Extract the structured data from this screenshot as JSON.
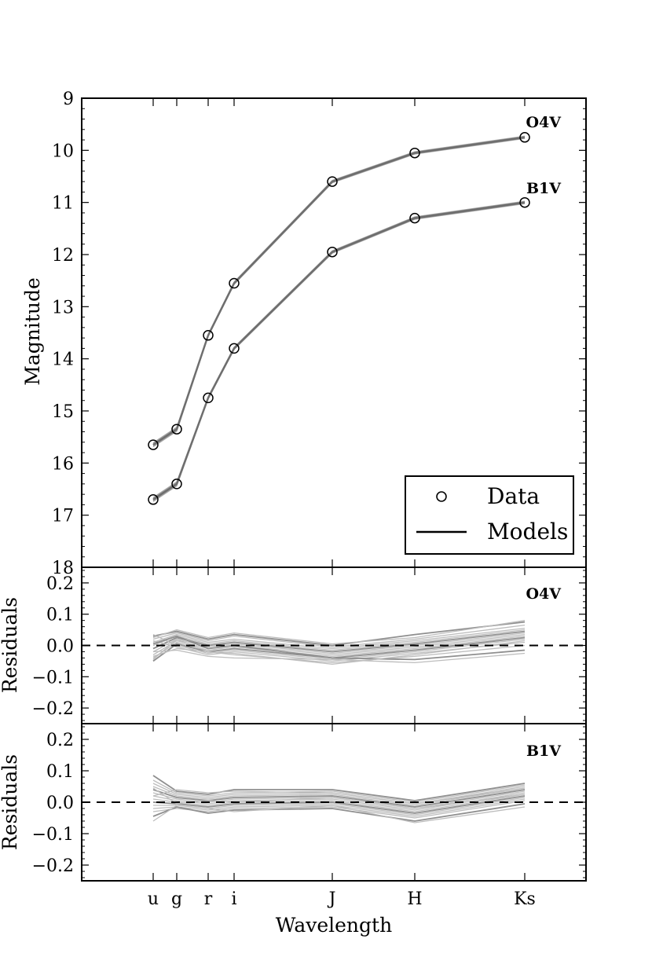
{
  "chart_data": {
    "type": "line",
    "xlabel": "Wavelength",
    "bands": [
      "u",
      "g",
      "r",
      "i",
      "J",
      "H",
      "Ks"
    ],
    "band_wavelength_um": [
      0.354,
      0.475,
      0.622,
      0.763,
      1.25,
      1.65,
      2.15
    ],
    "panels": [
      {
        "id": "magnitude",
        "ylabel": "Magnitude",
        "ylim": [
          18,
          9
        ],
        "yticks": [
          "9",
          "10",
          "11",
          "12",
          "13",
          "14",
          "15",
          "16",
          "17",
          "18"
        ],
        "series": [
          {
            "name": "O4V",
            "label": "O4V",
            "values": [
              15.65,
              15.35,
              13.55,
              12.55,
              10.6,
              10.05,
              9.75
            ]
          },
          {
            "name": "B1V",
            "label": "B1V",
            "values": [
              16.7,
              16.4,
              14.75,
              13.8,
              11.95,
              11.3,
              11.0
            ]
          }
        ],
        "legend": {
          "position": "lower-right",
          "entries": [
            "Data",
            "Models"
          ]
        }
      },
      {
        "id": "residuals-O4V",
        "ylabel": "Residuals",
        "label": "O4V",
        "ylim": [
          -0.25,
          0.25
        ],
        "yticks": [
          "0.2",
          "0.1",
          "0.0",
          "−0.1",
          "−0.2"
        ],
        "ytick_values": [
          0.2,
          0.1,
          0.0,
          -0.1,
          -0.2
        ],
        "reference_line": 0.0,
        "residual_series": [
          [
            0.03,
            0.045,
            0.02,
            0.035,
            0.0,
            0.035,
            0.075
          ],
          [
            0.02,
            0.04,
            0.015,
            0.03,
            -0.005,
            0.02,
            0.065
          ],
          [
            0.01,
            0.035,
            0.01,
            0.02,
            -0.01,
            0.015,
            0.055
          ],
          [
            0.0,
            0.03,
            0.005,
            0.015,
            -0.015,
            0.01,
            0.05
          ],
          [
            -0.01,
            0.025,
            0.0,
            0.01,
            -0.02,
            0.005,
            0.045
          ],
          [
            -0.02,
            0.02,
            -0.005,
            0.005,
            -0.025,
            0.0,
            0.04
          ],
          [
            -0.03,
            0.015,
            -0.01,
            0.0,
            -0.03,
            -0.005,
            0.035
          ],
          [
            -0.04,
            0.01,
            -0.015,
            -0.005,
            -0.035,
            -0.01,
            0.03
          ],
          [
            -0.05,
            0.005,
            -0.02,
            -0.01,
            -0.04,
            -0.015,
            0.025
          ],
          [
            0.035,
            0.0,
            -0.025,
            -0.015,
            -0.045,
            -0.02,
            0.02
          ],
          [
            0.015,
            -0.005,
            -0.03,
            -0.02,
            -0.05,
            -0.025,
            0.01
          ],
          [
            -0.035,
            -0.01,
            -0.02,
            -0.03,
            -0.055,
            -0.035,
            0.0
          ],
          [
            0.005,
            0.03,
            -0.01,
            0.0,
            -0.04,
            -0.045,
            -0.015
          ],
          [
            -0.02,
            -0.015,
            -0.035,
            -0.04,
            -0.045,
            -0.055,
            -0.025
          ],
          [
            0.025,
            0.05,
            0.025,
            0.04,
            0.005,
            0.025,
            0.08
          ],
          [
            -0.045,
            0.02,
            -0.02,
            -0.025,
            -0.06,
            -0.03,
            0.015
          ]
        ]
      },
      {
        "id": "residuals-B1V",
        "ylabel": "Residuals",
        "label": "B1V",
        "ylim": [
          -0.25,
          0.25
        ],
        "yticks": [
          "0.2",
          "0.1",
          "0.0",
          "−0.1",
          "−0.2"
        ],
        "ytick_values": [
          0.2,
          0.1,
          0.0,
          -0.1,
          -0.2
        ],
        "reference_line": 0.0,
        "residual_series": [
          [
            0.085,
            0.035,
            0.025,
            0.04,
            0.04,
            0.005,
            0.06
          ],
          [
            0.07,
            0.03,
            0.02,
            0.03,
            0.035,
            0.0,
            0.055
          ],
          [
            0.06,
            0.025,
            0.015,
            0.025,
            0.03,
            -0.005,
            0.05
          ],
          [
            0.05,
            0.02,
            0.01,
            0.02,
            0.025,
            -0.01,
            0.045
          ],
          [
            0.04,
            0.015,
            0.005,
            0.015,
            0.02,
            -0.015,
            0.04
          ],
          [
            0.03,
            0.01,
            0.0,
            0.01,
            0.015,
            -0.02,
            0.035
          ],
          [
            0.02,
            0.005,
            -0.005,
            0.005,
            0.01,
            -0.025,
            0.03
          ],
          [
            0.01,
            0.0,
            -0.01,
            0.0,
            0.005,
            -0.03,
            0.025
          ],
          [
            0.0,
            -0.005,
            -0.015,
            -0.005,
            0.0,
            -0.035,
            0.02
          ],
          [
            -0.01,
            -0.01,
            -0.02,
            -0.01,
            -0.005,
            -0.04,
            0.015
          ],
          [
            -0.02,
            -0.015,
            -0.025,
            -0.015,
            -0.01,
            -0.045,
            0.01
          ],
          [
            -0.03,
            -0.02,
            -0.03,
            -0.02,
            -0.015,
            -0.05,
            0.005
          ],
          [
            -0.045,
            -0.015,
            -0.035,
            -0.025,
            -0.02,
            -0.06,
            -0.005
          ],
          [
            -0.06,
            -0.01,
            -0.02,
            -0.03,
            -0.01,
            -0.065,
            -0.015
          ],
          [
            0.045,
            -0.005,
            0.005,
            0.0,
            0.015,
            -0.02,
            0.025
          ],
          [
            0.02,
            0.04,
            0.03,
            0.035,
            0.03,
            -0.005,
            0.045
          ]
        ]
      }
    ]
  },
  "colors": {
    "model_line": "#6e6e6e",
    "residual_line": "#bdbdbd",
    "residual_line_dark": "#8f8f8f",
    "axes": "#000000",
    "marker_edge": "#000000"
  }
}
